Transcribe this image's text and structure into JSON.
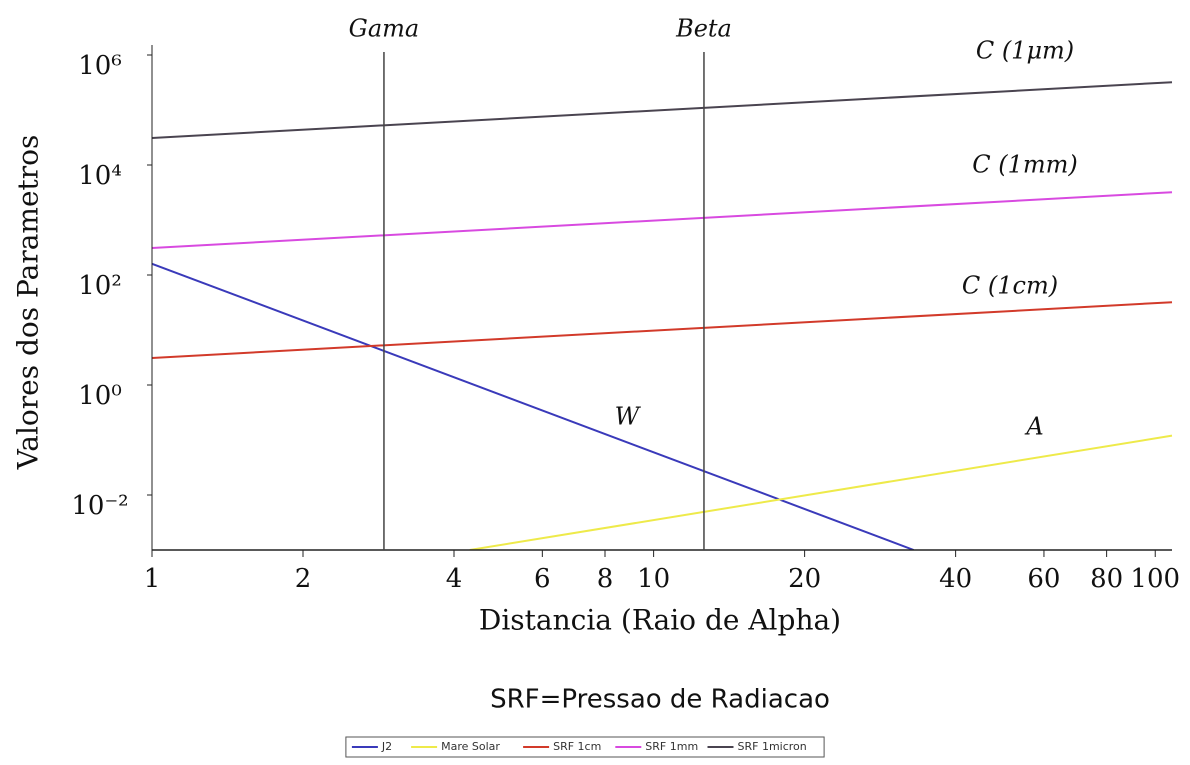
{
  "chart_data": {
    "type": "line",
    "xlabel": "Distancia (Raio de Alpha)",
    "ylabel": "Valores dos Parametros",
    "note": "SRF=Pressao de Radiacao",
    "xscale": "log",
    "yscale": "log",
    "xlim": [
      1,
      108
    ],
    "ylim": [
      0.001,
      1000000
    ],
    "xticks": [
      1,
      2,
      4,
      6,
      8,
      10,
      20,
      40,
      60,
      80,
      100
    ],
    "yticks": [
      {
        "value": 0.01,
        "label": "10⁻²"
      },
      {
        "value": 1,
        "label": "10⁰"
      },
      {
        "value": 100,
        "label": "10²"
      },
      {
        "value": 10000,
        "label": "10⁴"
      },
      {
        "value": 1000000,
        "label": "10⁶"
      }
    ],
    "vlines": [
      {
        "label": "Gama",
        "x": 2.9
      },
      {
        "label": "Beta",
        "x": 12.6
      }
    ],
    "annotations": [
      "C (1μm)",
      "C (1mm)",
      "C (1cm)",
      "W",
      "A"
    ],
    "legend": "bottom",
    "series": [
      {
        "name": "J2",
        "color": "#3a3aba",
        "x": [
          1,
          33
        ],
        "values": [
          160,
          0.001
        ]
      },
      {
        "name": "Mare Solar",
        "color": "#eeea4a",
        "x": [
          4.3,
          108
        ],
        "values": [
          0.001,
          0.12
        ]
      },
      {
        "name": "SRF 1cm",
        "color": "#d23a2a",
        "x": [
          1,
          108
        ],
        "values": [
          3.1,
          32
        ]
      },
      {
        "name": "SRF 1mm",
        "color": "#d84ae0",
        "x": [
          1,
          108
        ],
        "values": [
          310,
          3200
        ]
      },
      {
        "name": "SRF 1micron",
        "color": "#4a4450",
        "x": [
          1,
          108
        ],
        "values": [
          31000,
          320000
        ]
      }
    ]
  }
}
